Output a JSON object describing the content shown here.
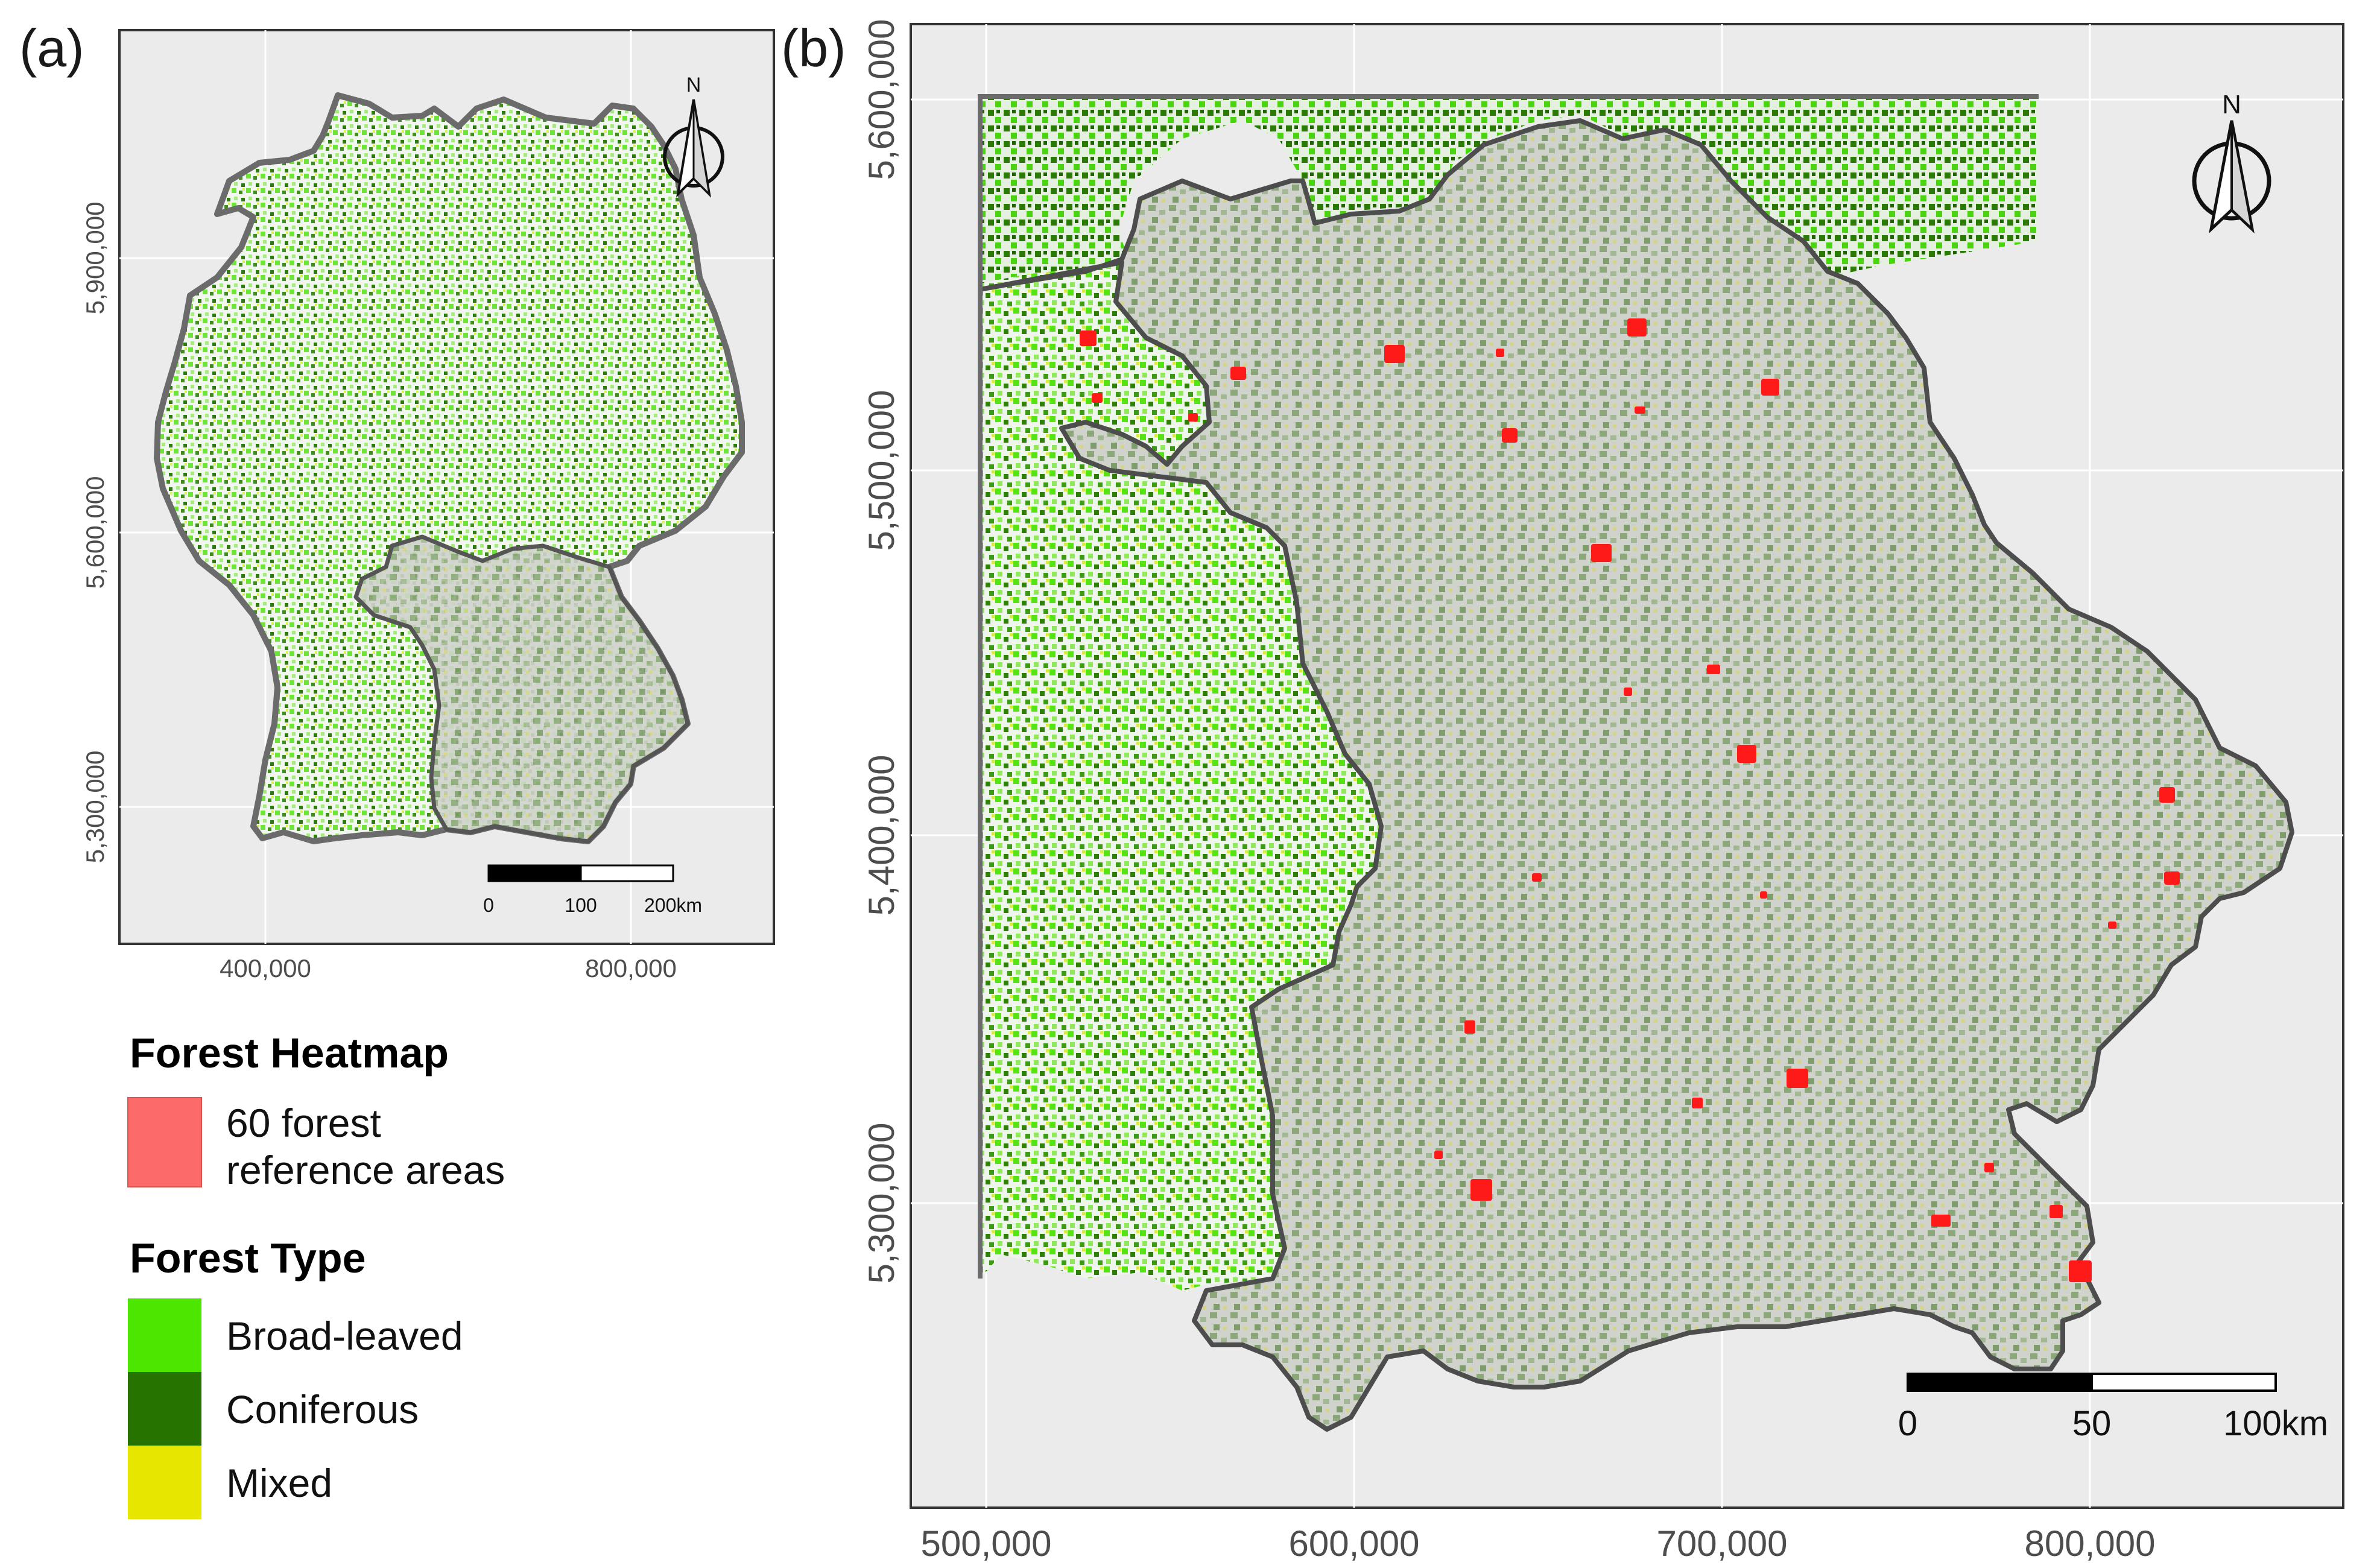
{
  "panel_a": {
    "label": "(a)",
    "y_ticks": [
      "5,900,000",
      "5,600,000",
      "5,300,000"
    ],
    "x_ticks": [
      "400,000",
      "800,000"
    ],
    "north_label": "N",
    "scale_bar": {
      "labels": [
        "0",
        "100",
        "200km"
      ]
    }
  },
  "panel_b": {
    "label": "(b)",
    "y_ticks": [
      "5,600,000",
      "5,500,000",
      "5,400,000",
      "5,300,000"
    ],
    "x_ticks": [
      "500,000",
      "600,000",
      "700,000",
      "800,000"
    ],
    "north_label": "N",
    "scale_bar": {
      "labels": [
        "0",
        "50",
        "100km"
      ]
    }
  },
  "legend": {
    "heatmap": {
      "title": "Forest Heatmap",
      "line1": "60 forest",
      "line2": "reference areas",
      "color": "#fd6a6a"
    },
    "forest_type": {
      "title": "Forest Type",
      "items": [
        {
          "label": "Broad-leaved",
          "color": "#4ce600"
        },
        {
          "label": "Coniferous",
          "color": "#267300"
        },
        {
          "label": "Mixed",
          "color": "#e6e600"
        }
      ]
    }
  },
  "colors": {
    "panel_bg": "#ebebeb",
    "grid": "#ffffff",
    "region_fill": "#d3d3d3",
    "border": "#595959",
    "reference_area": "#ff1a1a"
  }
}
